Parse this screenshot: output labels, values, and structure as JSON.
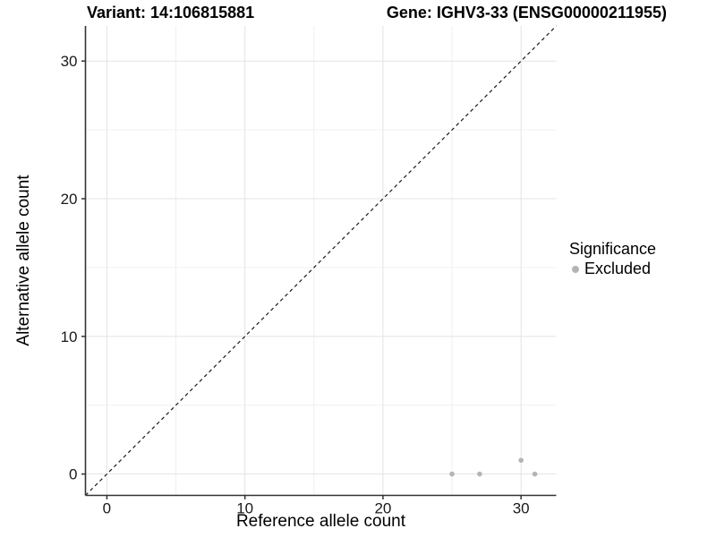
{
  "figure": {
    "title_left": "Variant: 14:106815881",
    "title_right": "Gene: IGHV3-33 (ENSG00000211955)"
  },
  "axes": {
    "x_label": "Reference allele count",
    "y_label": "Alternative allele count"
  },
  "legend": {
    "title": "Significance",
    "items": [
      {
        "label": "Excluded",
        "color": "#b4b4b4",
        "marker": "circle"
      }
    ]
  },
  "chart_data": {
    "type": "scatter",
    "title_left": "Variant: 14:106815881",
    "title_right": "Gene: IGHV3-33 (ENSG00000211955)",
    "xlabel": "Reference allele count",
    "ylabel": "Alternative allele count",
    "xlim": [
      -1.55,
      32.55
    ],
    "ylim": [
      -1.55,
      32.55
    ],
    "x_ticks": [
      0,
      10,
      20,
      30
    ],
    "y_ticks": [
      0,
      10,
      20,
      30
    ],
    "x_minor_ticks": [
      5,
      15,
      25
    ],
    "y_minor_ticks": [
      5,
      15,
      25
    ],
    "grid": "major-and-minor",
    "legend_position": "right",
    "series": [
      {
        "name": "Excluded",
        "color": "#b4b4b4",
        "points": [
          {
            "x": 25,
            "y": 0
          },
          {
            "x": 27,
            "y": 0
          },
          {
            "x": 30,
            "y": 1
          },
          {
            "x": 31,
            "y": 0
          }
        ]
      }
    ],
    "reference_line": {
      "kind": "identity",
      "style": "dashed",
      "color": "#1a1a1a"
    }
  },
  "colors": {
    "background": "#ffffff",
    "grid_major": "#e3e3e3",
    "grid_minor": "#f0f0f0",
    "axis_line": "#333333",
    "axis_text": "#1a1a1a",
    "point": "#b4b4b4"
  }
}
